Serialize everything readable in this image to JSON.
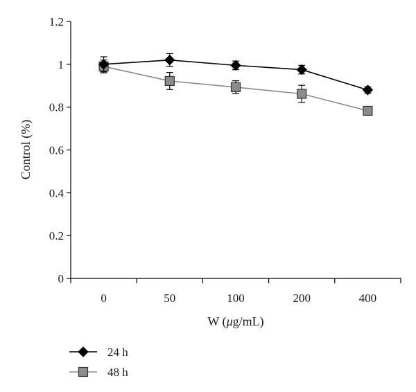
{
  "chart_data": {
    "type": "line",
    "title": "",
    "xlabel": "W (μg/mL)",
    "xlabel_prefix": "W (",
    "xlabel_mu": "μ",
    "xlabel_suffix": "g/mL)",
    "ylabel": "Control (%)",
    "categories": [
      "0",
      "50",
      "100",
      "200",
      "400"
    ],
    "ylim": [
      0,
      1.2
    ],
    "yticks": [
      "0",
      "0.2",
      "0.4",
      "0.6",
      "0.8",
      "1",
      "1.2"
    ],
    "ytick_values": [
      0,
      0.2,
      0.4,
      0.6,
      0.8,
      1.0,
      1.2
    ],
    "grid": false,
    "legend_position": "bottom-left",
    "series": [
      {
        "name": "24 h",
        "values": [
          1.0,
          1.02,
          0.995,
          0.975,
          0.88
        ],
        "errors": [
          0.035,
          0.03,
          0.02,
          0.02,
          0.015
        ],
        "marker": "diamond",
        "color": "#000000",
        "marker_color": "#000000"
      },
      {
        "name": "48 h",
        "values": [
          0.99,
          0.922,
          0.893,
          0.862,
          0.783
        ],
        "errors": [
          0.03,
          0.04,
          0.03,
          0.04,
          0.02
        ],
        "marker": "square",
        "color": "#8a8a8a",
        "marker_color": "#8c8c8c"
      }
    ]
  }
}
